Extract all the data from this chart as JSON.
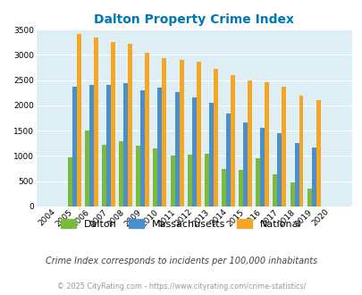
{
  "title": "Dalton Property Crime Index",
  "years": [
    2004,
    2005,
    2006,
    2007,
    2008,
    2009,
    2010,
    2011,
    2012,
    2013,
    2014,
    2015,
    2016,
    2017,
    2018,
    2019,
    2020
  ],
  "dalton": [
    0,
    980,
    1510,
    1220,
    1290,
    1195,
    1145,
    1010,
    1025,
    1045,
    735,
    730,
    960,
    630,
    475,
    355,
    0
  ],
  "massachusetts": [
    0,
    2375,
    2400,
    2400,
    2440,
    2305,
    2350,
    2255,
    2160,
    2045,
    1845,
    1670,
    1555,
    1455,
    1260,
    1170,
    0
  ],
  "national": [
    0,
    3420,
    3335,
    3260,
    3210,
    3040,
    2940,
    2900,
    2870,
    2720,
    2590,
    2490,
    2460,
    2375,
    2200,
    2110,
    0
  ],
  "dalton_color": "#7cba3b",
  "mass_color": "#4a8ecb",
  "national_color": "#f5a623",
  "bg_color": "#ddeef5",
  "title_color": "#0077b6",
  "ylim": [
    0,
    3500
  ],
  "yticks": [
    0,
    500,
    1000,
    1500,
    2000,
    2500,
    3000,
    3500
  ],
  "subtitle": "Crime Index corresponds to incidents per 100,000 inhabitants",
  "footer": "© 2025 CityRating.com - https://www.cityrating.com/crime-statistics/",
  "legend_labels": [
    "Dalton",
    "Massachusetts",
    "National"
  ]
}
